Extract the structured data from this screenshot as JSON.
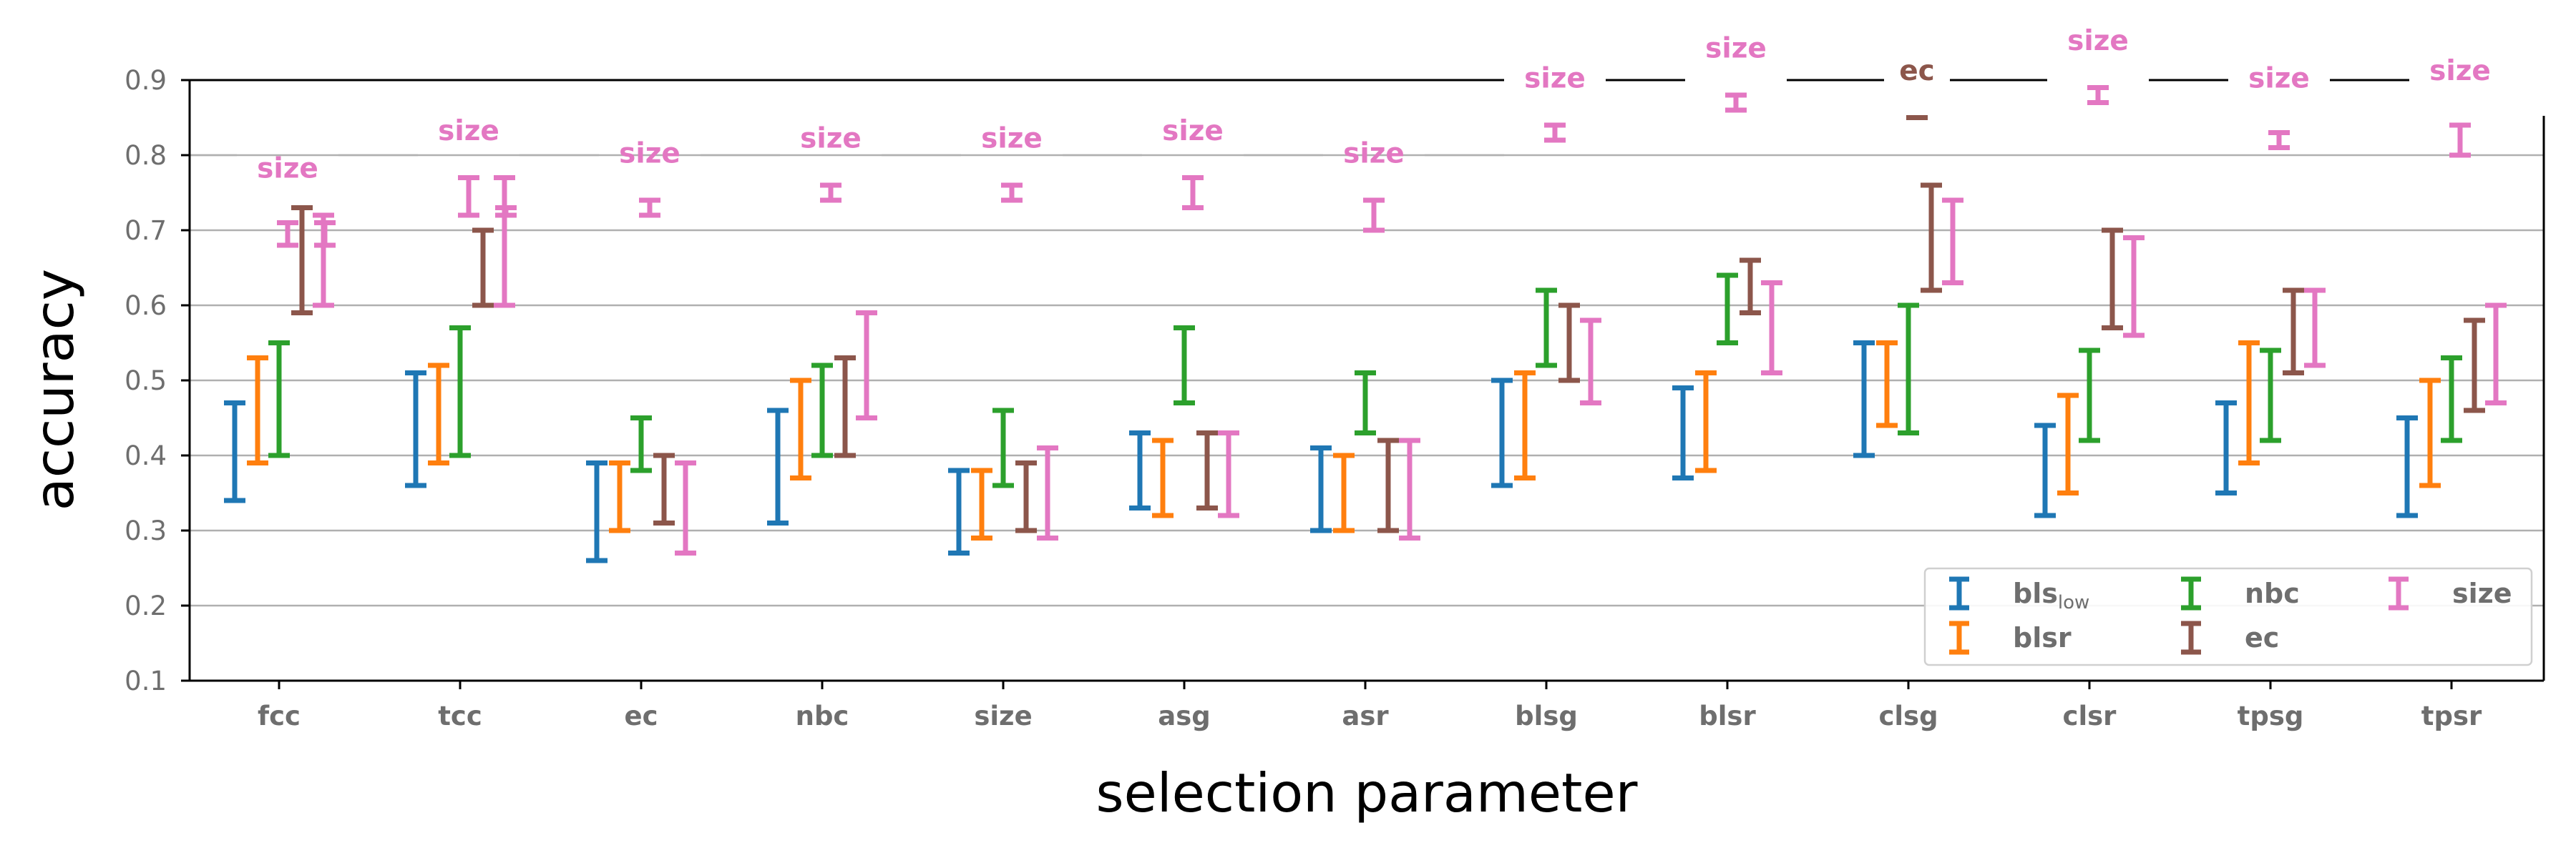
{
  "chart_data": {
    "type": "errorbar",
    "title": "",
    "xlabel": "selection parameter",
    "ylabel": "accuracy",
    "ylim": [
      0.1,
      0.9
    ],
    "yticks": [
      "0.1",
      "0.2",
      "0.3",
      "0.4",
      "0.5",
      "0.6",
      "0.7",
      "0.8",
      "0.9"
    ],
    "categories": [
      "fcc",
      "tcc",
      "ec",
      "nbc",
      "size",
      "asg",
      "asr",
      "blsg",
      "blsr",
      "clsg",
      "clsr",
      "tpsg",
      "tpsr"
    ],
    "grid": "horizontal",
    "legend_position": "lower-right",
    "series": [
      {
        "name": "bls",
        "name_sub": "low",
        "color": "#1f77b4",
        "ranges": [
          [
            0.34,
            0.47
          ],
          [
            0.36,
            0.51
          ],
          [
            0.26,
            0.39
          ],
          [
            0.31,
            0.46
          ],
          [
            0.27,
            0.38
          ],
          [
            0.33,
            0.43
          ],
          [
            0.3,
            0.41
          ],
          [
            0.36,
            0.5
          ],
          [
            0.37,
            0.49
          ],
          [
            0.4,
            0.55
          ],
          [
            0.32,
            0.44
          ],
          [
            0.35,
            0.47
          ],
          [
            0.32,
            0.45
          ]
        ]
      },
      {
        "name": "blsr",
        "color": "#ff7f0e",
        "ranges": [
          [
            0.39,
            0.53
          ],
          [
            0.39,
            0.52
          ],
          [
            0.3,
            0.39
          ],
          [
            0.37,
            0.5
          ],
          [
            0.29,
            0.38
          ],
          [
            0.32,
            0.42
          ],
          [
            0.3,
            0.4
          ],
          [
            0.37,
            0.51
          ],
          [
            0.38,
            0.51
          ],
          [
            0.44,
            0.55
          ],
          [
            0.35,
            0.48
          ],
          [
            0.39,
            0.55
          ],
          [
            0.36,
            0.5
          ]
        ]
      },
      {
        "name": "nbc",
        "color": "#2ca02c",
        "ranges": [
          [
            0.4,
            0.55
          ],
          [
            0.4,
            0.57
          ],
          [
            0.38,
            0.45
          ],
          [
            0.4,
            0.52
          ],
          [
            0.36,
            0.46
          ],
          [
            0.47,
            0.57
          ],
          [
            0.43,
            0.51
          ],
          [
            0.52,
            0.62
          ],
          [
            0.55,
            0.64
          ],
          [
            0.43,
            0.6
          ],
          [
            0.42,
            0.54
          ],
          [
            0.42,
            0.54
          ],
          [
            0.42,
            0.53
          ]
        ]
      },
      {
        "name": "ec",
        "color": "#8c564b",
        "ranges": [
          [
            0.59,
            0.73
          ],
          [
            0.6,
            0.7
          ],
          [
            0.31,
            0.4
          ],
          [
            0.4,
            0.53
          ],
          [
            0.3,
            0.39
          ],
          [
            0.33,
            0.43
          ],
          [
            0.3,
            0.42
          ],
          [
            0.5,
            0.6
          ],
          [
            0.59,
            0.66
          ],
          [
            0.62,
            0.76
          ],
          [
            0.57,
            0.7
          ],
          [
            0.51,
            0.62
          ],
          [
            0.46,
            0.58
          ]
        ]
      },
      {
        "name": "size",
        "color": "#e377c2",
        "ranges": [
          [
            0.6,
            0.72
          ],
          [
            0.6,
            0.77
          ],
          [
            0.27,
            0.39
          ],
          [
            0.45,
            0.59
          ],
          [
            0.29,
            0.41
          ],
          [
            0.32,
            0.43
          ],
          [
            0.29,
            0.42
          ],
          [
            0.47,
            0.58
          ],
          [
            0.51,
            0.63
          ],
          [
            0.63,
            0.74
          ],
          [
            0.56,
            0.69
          ],
          [
            0.52,
            0.62
          ],
          [
            0.47,
            0.6
          ]
        ]
      }
    ],
    "extra_bars": [
      {
        "category": "fcc",
        "color": "#e377c2",
        "range": [
          0.68,
          0.71
        ]
      },
      {
        "category": "tcc",
        "color": "#e377c2",
        "range": [
          0.72,
          0.73
        ]
      }
    ],
    "top_group": {
      "bars": [
        {
          "category": "fcc",
          "series": "size",
          "range": [
            0.68,
            0.71
          ],
          "label": "size",
          "label_value": 0.77
        },
        {
          "category": "tcc",
          "series": "size",
          "range": [
            0.72,
            0.77
          ],
          "label": "size",
          "label_value": 0.82
        },
        {
          "category": "ec",
          "series": "size",
          "range": [
            0.72,
            0.74
          ],
          "label": "size",
          "label_value": 0.79
        },
        {
          "category": "nbc",
          "series": "size",
          "range": [
            0.74,
            0.76
          ],
          "label": "size",
          "label_value": 0.81
        },
        {
          "category": "size",
          "series": "size",
          "range": [
            0.74,
            0.76
          ],
          "label": "size",
          "label_value": 0.81
        },
        {
          "category": "asg",
          "series": "size",
          "range": [
            0.73,
            0.77
          ],
          "label": "size",
          "label_value": 0.82
        },
        {
          "category": "asr",
          "series": "size",
          "range": [
            0.7,
            0.74
          ],
          "label": "size",
          "label_value": 0.79
        },
        {
          "category": "blsg",
          "series": "size",
          "range": [
            0.82,
            0.84
          ],
          "label": "size",
          "label_value": 0.89
        },
        {
          "category": "blsr",
          "series": "size",
          "range": [
            0.86,
            0.88
          ],
          "label": "size",
          "label_value": 0.93
        },
        {
          "category": "clsg",
          "series": "ec",
          "range": [
            0.85,
            0.85
          ],
          "label": "ec",
          "label_value": 0.9
        },
        {
          "category": "clsr",
          "series": "size",
          "range": [
            0.87,
            0.89
          ],
          "label": "size",
          "label_value": 0.94
        },
        {
          "category": "tpsg",
          "series": "size",
          "range": [
            0.81,
            0.83
          ],
          "label": "size",
          "label_value": 0.89
        },
        {
          "category": "tpsr",
          "series": "size",
          "range": [
            0.8,
            0.84
          ],
          "label": "size",
          "label_value": 0.9
        }
      ]
    }
  }
}
